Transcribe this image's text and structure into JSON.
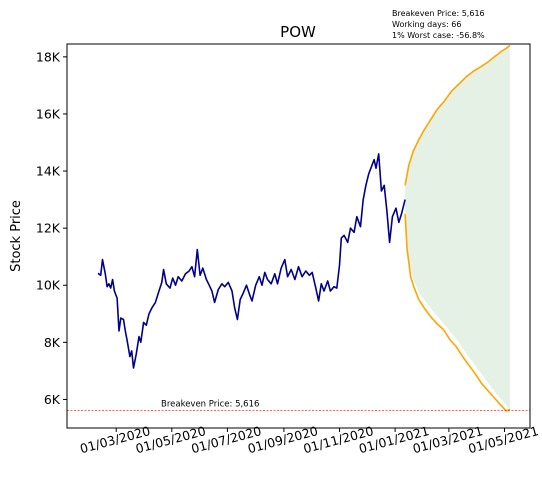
{
  "chart_data": {
    "type": "line",
    "title": "POW",
    "ylabel": "Stock Price",
    "xlabel": "",
    "info_lines": [
      "Breakeven Price: 5,616",
      "Working days: 66",
      "1% Worst case: -56.8%"
    ],
    "breakeven": {
      "value": 5616,
      "label": "Breakeven Price: 5,616",
      "color": "#ff0000"
    },
    "ylim": [
      5000,
      18450
    ],
    "xlim": [
      "2020-01-07",
      "2021-05-29"
    ],
    "y_ticks": [
      {
        "value": 6000,
        "label": "6K"
      },
      {
        "value": 8000,
        "label": "8K"
      },
      {
        "value": 10000,
        "label": "10K"
      },
      {
        "value": 12000,
        "label": "12K"
      },
      {
        "value": 14000,
        "label": "14K"
      },
      {
        "value": 16000,
        "label": "16K"
      },
      {
        "value": 18000,
        "label": "18K"
      }
    ],
    "x_ticks": [
      {
        "value": "2020-03-01",
        "label": "01/03/2020"
      },
      {
        "value": "2020-05-01",
        "label": "01/05/2020"
      },
      {
        "value": "2020-07-01",
        "label": "01/07/2020"
      },
      {
        "value": "2020-09-01",
        "label": "01/09/2020"
      },
      {
        "value": "2020-11-01",
        "label": "01/11/2020"
      },
      {
        "value": "2021-01-01",
        "label": "01/01/2021"
      },
      {
        "value": "2021-03-01",
        "label": "01/03/2021"
      },
      {
        "value": "2021-05-01",
        "label": "01/05/2021"
      }
    ],
    "series": [
      {
        "color": "#00008b",
        "points": [
          [
            "2020-02-10",
            10420
          ],
          [
            "2020-02-13",
            10350
          ],
          [
            "2020-02-15",
            10900
          ],
          [
            "2020-02-18",
            10400
          ],
          [
            "2020-02-20",
            9950
          ],
          [
            "2020-02-22",
            10050
          ],
          [
            "2020-02-24",
            9900
          ],
          [
            "2020-02-26",
            10200
          ],
          [
            "2020-02-28",
            9800
          ],
          [
            "2020-03-02",
            9550
          ],
          [
            "2020-03-04",
            8400
          ],
          [
            "2020-03-06",
            8850
          ],
          [
            "2020-03-09",
            8800
          ],
          [
            "2020-03-11",
            8400
          ],
          [
            "2020-03-13",
            8050
          ],
          [
            "2020-03-16",
            7500
          ],
          [
            "2020-03-18",
            7700
          ],
          [
            "2020-03-20",
            7100
          ],
          [
            "2020-03-23",
            7600
          ],
          [
            "2020-03-26",
            8200
          ],
          [
            "2020-03-28",
            8000
          ],
          [
            "2020-03-31",
            8700
          ],
          [
            "2020-04-03",
            8600
          ],
          [
            "2020-04-06",
            9000
          ],
          [
            "2020-04-09",
            9200
          ],
          [
            "2020-04-13",
            9400
          ],
          [
            "2020-04-16",
            9700
          ],
          [
            "2020-04-20",
            10100
          ],
          [
            "2020-04-22",
            10550
          ],
          [
            "2020-04-25",
            10050
          ],
          [
            "2020-04-29",
            9900
          ],
          [
            "2020-05-02",
            10250
          ],
          [
            "2020-05-05",
            10000
          ],
          [
            "2020-05-08",
            10300
          ],
          [
            "2020-05-12",
            10150
          ],
          [
            "2020-05-16",
            10400
          ],
          [
            "2020-05-20",
            10500
          ],
          [
            "2020-05-23",
            10650
          ],
          [
            "2020-05-26",
            10300
          ],
          [
            "2020-05-29",
            11250
          ],
          [
            "2020-06-01",
            10350
          ],
          [
            "2020-06-04",
            10600
          ],
          [
            "2020-06-08",
            10200
          ],
          [
            "2020-06-11",
            10000
          ],
          [
            "2020-06-14",
            9800
          ],
          [
            "2020-06-17",
            9400
          ],
          [
            "2020-06-21",
            9850
          ],
          [
            "2020-06-25",
            10050
          ],
          [
            "2020-06-28",
            9950
          ],
          [
            "2020-07-02",
            10100
          ],
          [
            "2020-07-06",
            9800
          ],
          [
            "2020-07-09",
            9200
          ],
          [
            "2020-07-12",
            8800
          ],
          [
            "2020-07-15",
            9500
          ],
          [
            "2020-07-18",
            9700
          ],
          [
            "2020-07-22",
            10000
          ],
          [
            "2020-07-25",
            9700
          ],
          [
            "2020-07-28",
            9450
          ],
          [
            "2020-08-01",
            10000
          ],
          [
            "2020-08-05",
            10300
          ],
          [
            "2020-08-08",
            10000
          ],
          [
            "2020-08-11",
            10450
          ],
          [
            "2020-08-14",
            10200
          ],
          [
            "2020-08-18",
            10050
          ],
          [
            "2020-08-22",
            10400
          ],
          [
            "2020-08-25",
            10050
          ],
          [
            "2020-08-29",
            10600
          ],
          [
            "2020-09-02",
            10900
          ],
          [
            "2020-09-05",
            10300
          ],
          [
            "2020-09-09",
            10550
          ],
          [
            "2020-09-13",
            10200
          ],
          [
            "2020-09-17",
            10650
          ],
          [
            "2020-09-21",
            10300
          ],
          [
            "2020-09-25",
            10500
          ],
          [
            "2020-09-29",
            10350
          ],
          [
            "2020-10-02",
            10450
          ],
          [
            "2020-10-06",
            9900
          ],
          [
            "2020-10-09",
            9450
          ],
          [
            "2020-10-12",
            10050
          ],
          [
            "2020-10-15",
            9800
          ],
          [
            "2020-10-19",
            10150
          ],
          [
            "2020-10-22",
            9800
          ],
          [
            "2020-10-26",
            9950
          ],
          [
            "2020-10-29",
            9900
          ],
          [
            "2020-11-01",
            10700
          ],
          [
            "2020-11-03",
            11650
          ],
          [
            "2020-11-06",
            11750
          ],
          [
            "2020-11-10",
            11500
          ],
          [
            "2020-11-13",
            12000
          ],
          [
            "2020-11-17",
            11850
          ],
          [
            "2020-11-20",
            12400
          ],
          [
            "2020-11-24",
            12050
          ],
          [
            "2020-11-27",
            13000
          ],
          [
            "2020-11-30",
            13500
          ],
          [
            "2020-12-03",
            13900
          ],
          [
            "2020-12-06",
            14150
          ],
          [
            "2020-12-09",
            14400
          ],
          [
            "2020-12-11",
            14100
          ],
          [
            "2020-12-14",
            14600
          ],
          [
            "2020-12-17",
            13300
          ],
          [
            "2020-12-20",
            13500
          ],
          [
            "2020-12-23",
            12600
          ],
          [
            "2020-12-26",
            11500
          ],
          [
            "2020-12-29",
            12400
          ],
          [
            "2021-01-02",
            12700
          ],
          [
            "2021-01-05",
            12200
          ],
          [
            "2021-01-08",
            12500
          ],
          [
            "2021-01-12",
            13000
          ]
        ]
      },
      {
        "color": "#ffa500",
        "points": [
          [
            "2021-01-12",
            13500
          ],
          [
            "2021-01-16",
            14200
          ],
          [
            "2021-01-21",
            14700
          ],
          [
            "2021-01-27",
            15100
          ],
          [
            "2021-02-02",
            15450
          ],
          [
            "2021-02-09",
            15800
          ],
          [
            "2021-02-16",
            16150
          ],
          [
            "2021-02-24",
            16450
          ],
          [
            "2021-03-04",
            16800
          ],
          [
            "2021-03-12",
            17050
          ],
          [
            "2021-03-20",
            17300
          ],
          [
            "2021-03-28",
            17500
          ],
          [
            "2021-04-05",
            17650
          ],
          [
            "2021-04-12",
            17800
          ],
          [
            "2021-04-18",
            17950
          ],
          [
            "2021-04-24",
            18100
          ],
          [
            "2021-04-28",
            18200
          ],
          [
            "2021-05-03",
            18300
          ],
          [
            "2021-05-07",
            18400
          ]
        ]
      },
      {
        "color": "#ffa500",
        "points": [
          [
            "2021-01-12",
            12500
          ],
          [
            "2021-01-14",
            11300
          ],
          [
            "2021-01-18",
            10300
          ],
          [
            "2021-01-22",
            9900
          ],
          [
            "2021-01-27",
            9500
          ],
          [
            "2021-02-02",
            9200
          ],
          [
            "2021-02-09",
            8900
          ],
          [
            "2021-02-16",
            8650
          ],
          [
            "2021-02-23",
            8450
          ],
          [
            "2021-03-02",
            8100
          ],
          [
            "2021-03-09",
            7850
          ],
          [
            "2021-03-16",
            7500
          ],
          [
            "2021-03-23",
            7200
          ],
          [
            "2021-03-30",
            6900
          ],
          [
            "2021-04-06",
            6550
          ],
          [
            "2021-04-13",
            6300
          ],
          [
            "2021-04-20",
            6050
          ],
          [
            "2021-04-27",
            5800
          ],
          [
            "2021-05-03",
            5600
          ],
          [
            "2021-05-07",
            5650
          ]
        ]
      }
    ],
    "band": {
      "color": "#2e8b2e",
      "opacity": 0.12,
      "upper": [
        [
          "2021-01-12",
          13500
        ],
        [
          "2021-01-16",
          14200
        ],
        [
          "2021-01-21",
          14700
        ],
        [
          "2021-01-27",
          15100
        ],
        [
          "2021-02-02",
          15450
        ],
        [
          "2021-02-09",
          15800
        ],
        [
          "2021-02-16",
          16150
        ],
        [
          "2021-02-24",
          16450
        ],
        [
          "2021-03-04",
          16800
        ],
        [
          "2021-03-12",
          17050
        ],
        [
          "2021-03-20",
          17300
        ],
        [
          "2021-03-28",
          17500
        ],
        [
          "2021-04-05",
          17650
        ],
        [
          "2021-04-12",
          17800
        ],
        [
          "2021-04-18",
          17950
        ],
        [
          "2021-04-24",
          18100
        ],
        [
          "2021-04-28",
          18200
        ],
        [
          "2021-05-03",
          18300
        ],
        [
          "2021-05-07",
          18400
        ]
      ],
      "lower": [
        [
          "2021-01-12",
          12500
        ],
        [
          "2021-01-16",
          10800
        ],
        [
          "2021-01-22",
          10100
        ],
        [
          "2021-01-28",
          9700
        ],
        [
          "2021-02-04",
          9400
        ],
        [
          "2021-02-11",
          9100
        ],
        [
          "2021-02-18",
          8850
        ],
        [
          "2021-02-25",
          8600
        ],
        [
          "2021-03-04",
          8300
        ],
        [
          "2021-03-11",
          8050
        ],
        [
          "2021-03-18",
          7700
        ],
        [
          "2021-03-25",
          7400
        ],
        [
          "2021-04-01",
          7100
        ],
        [
          "2021-04-08",
          6800
        ],
        [
          "2021-04-15",
          6500
        ],
        [
          "2021-04-22",
          6200
        ],
        [
          "2021-04-29",
          5950
        ],
        [
          "2021-05-03",
          5800
        ],
        [
          "2021-05-07",
          5600
        ]
      ]
    }
  }
}
